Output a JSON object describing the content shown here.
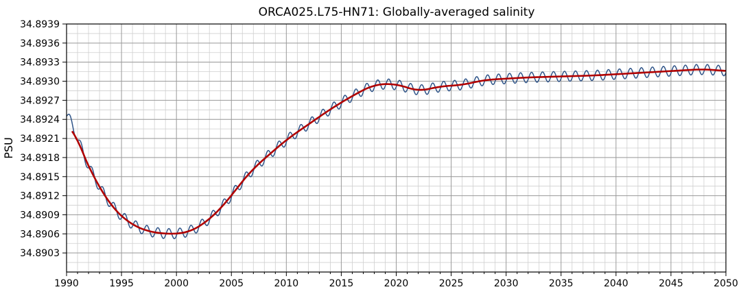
{
  "chart_data": {
    "type": "line",
    "title": "ORCA025.L75-HN71: Globally-averaged salinity",
    "xlabel": "",
    "ylabel": "PSU",
    "xlim": [
      1990,
      2050
    ],
    "ylim": [
      34.89,
      34.8939
    ],
    "x_major_ticks": [
      1990,
      1995,
      2000,
      2005,
      2010,
      2015,
      2020,
      2025,
      2030,
      2035,
      2040,
      2045,
      2050
    ],
    "x_tick_labels": [
      "1990",
      "1995",
      "2000",
      "2005",
      "2010",
      "2015",
      "2020",
      "2025",
      "2030",
      "2035",
      "2040",
      "2045",
      "2050"
    ],
    "y_major_ticks": [
      34.8903,
      34.8906,
      34.8909,
      34.8912,
      34.8915,
      34.8918,
      34.8921,
      34.8924,
      34.8927,
      34.893,
      34.8933,
      34.8936,
      34.8939
    ],
    "y_tick_labels": [
      "34.8903",
      "34.8906",
      "34.8909",
      "34.8912",
      "34.8915",
      "34.8918",
      "34.8921",
      "34.8924",
      "34.8927",
      "34.8930",
      "34.8933",
      "34.8936",
      "34.8939"
    ],
    "grid": true,
    "legend": "none",
    "series": [
      {
        "role": "monthly",
        "color": "#2f5488",
        "x": [
          1990.0,
          1990.5,
          1991,
          1992,
          1993,
          1994,
          1995,
          1996,
          1997,
          1998,
          1999,
          2000,
          2001,
          2002,
          2003,
          2004,
          2005,
          2006,
          2007,
          2008,
          2009,
          2010,
          2012,
          2014,
          2016,
          2018,
          2020,
          2022,
          2024,
          2026,
          2028,
          2030,
          2032,
          2034,
          2036,
          2038,
          2040,
          2042,
          2044,
          2046,
          2048,
          2050
        ],
        "y": [
          34.89262,
          34.89238,
          34.89205,
          34.89165,
          34.89133,
          34.89105,
          34.89087,
          34.89074,
          34.89066,
          34.89062,
          34.8906,
          34.8906,
          34.89062,
          34.8907,
          34.89083,
          34.89099,
          34.8912,
          34.89143,
          34.89163,
          34.89178,
          34.89193,
          34.89208,
          34.89232,
          34.89256,
          34.89277,
          34.89295,
          34.89296,
          34.89284,
          34.89292,
          34.89294,
          34.89302,
          34.89304,
          34.89306,
          34.89307,
          34.89308,
          34.89309,
          34.89311,
          34.89313,
          34.89315,
          34.89317,
          34.89319,
          34.89316
        ],
        "seasonal_amplitude": 8e-05,
        "cycles_per_year": 1
      },
      {
        "role": "smoothed",
        "color": "#b00000",
        "x": [
          1990.5,
          1991,
          1992,
          1993,
          1994,
          1995,
          1996,
          1997,
          1998,
          1999,
          2000,
          2001,
          2002,
          2003,
          2004,
          2005,
          2006,
          2007,
          2008,
          2009,
          2010,
          2012,
          2014,
          2016,
          2018,
          2020,
          2022,
          2024,
          2026,
          2028,
          2030,
          2032,
          2034,
          2036,
          2038,
          2040,
          2042,
          2044,
          2046,
          2048,
          2050
        ],
        "y": [
          34.89236,
          34.89205,
          34.89165,
          34.89133,
          34.89105,
          34.89087,
          34.89074,
          34.89066,
          34.89062,
          34.8906,
          34.8906,
          34.89062,
          34.8907,
          34.89083,
          34.89099,
          34.8912,
          34.89143,
          34.89163,
          34.89178,
          34.89193,
          34.89208,
          34.89232,
          34.89256,
          34.89277,
          34.89295,
          34.89296,
          34.89284,
          34.89292,
          34.89294,
          34.89302,
          34.89304,
          34.89306,
          34.89307,
          34.89308,
          34.89309,
          34.89311,
          34.89313,
          34.89315,
          34.89317,
          34.89319,
          34.89316
        ]
      }
    ]
  }
}
